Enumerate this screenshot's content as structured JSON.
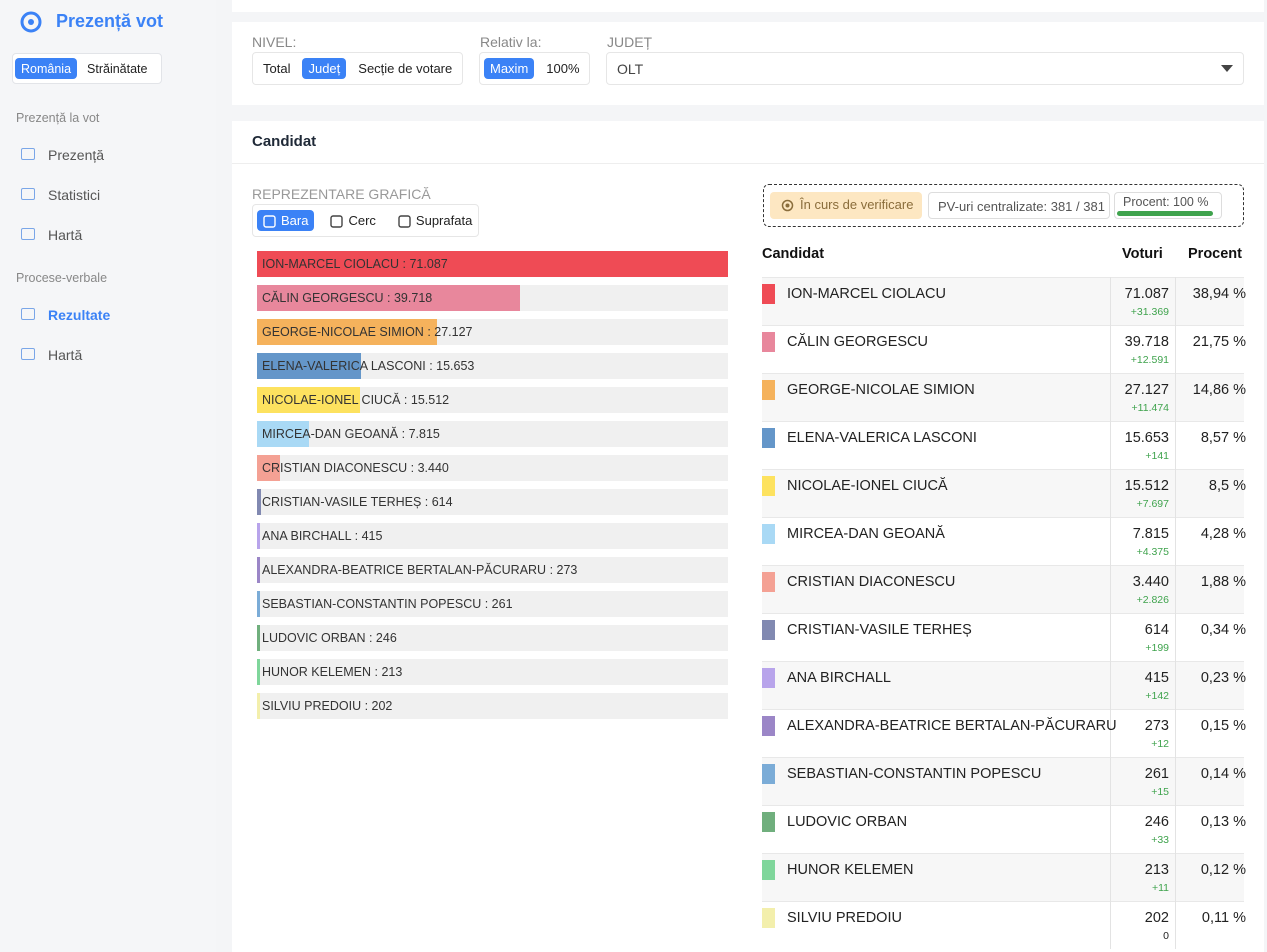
{
  "sidebar": {
    "brand": "Prezență vot",
    "scope_options": [
      "România",
      "Străinătate"
    ],
    "active_scope": 0,
    "sections": [
      {
        "title": "Prezență la vot",
        "items": [
          "Prezență",
          "Statistici",
          "Hartă"
        ]
      },
      {
        "title": "Procese-verbale",
        "items": [
          "Rezultate",
          "Hartă"
        ]
      }
    ],
    "active_item": [
      1,
      0
    ]
  },
  "filters": {
    "level_label": "NIVEL:",
    "level_options": [
      "Total",
      "Județ",
      "Secție de votare"
    ],
    "active_level": 1,
    "relative_label": "Relativ la:",
    "relative_options": [
      "Maxim",
      "100%"
    ],
    "active_relative": 0,
    "county_label": "JUDEȚ",
    "county_value": "OLT"
  },
  "panel": {
    "title": "Candidat",
    "chart_label": "REPREZENTARE GRAFICĂ",
    "chart_tabs": [
      "Bara",
      "Cerc",
      "Suprafata"
    ],
    "active_tab": 0,
    "separator": " : ",
    "status": "În curs de verificare",
    "centralized": "PV-uri centralizate: 381 / 381",
    "progress_text": "Procent: 100 %",
    "progress": 100,
    "progress_color": "#3fa34d",
    "table_headers": [
      "Candidat",
      "Voturi",
      "Procent"
    ]
  },
  "candidates": [
    {
      "name": "ION-MARCEL CIOLACU",
      "votes": 71087,
      "votes_label": "71.087",
      "delta": "+31.369",
      "percent": "38,94 %",
      "color": "#ef4b55"
    },
    {
      "name": "CĂLIN GEORGESCU",
      "votes": 39718,
      "votes_label": "39.718",
      "delta": "+12.591",
      "percent": "21,75 %",
      "color": "#e8879c"
    },
    {
      "name": "GEORGE-NICOLAE SIMION",
      "votes": 27127,
      "votes_label": "27.127",
      "delta": "+11.474",
      "percent": "14,86 %",
      "color": "#f5b25c"
    },
    {
      "name": "ELENA-VALERICA LASCONI",
      "votes": 15653,
      "votes_label": "15.653",
      "delta": "+141",
      "percent": "8,57 %",
      "color": "#6496c9"
    },
    {
      "name": "NICOLAE-IONEL CIUCĂ",
      "votes": 15512,
      "votes_label": "15.512",
      "delta": "+7.697",
      "percent": "8,5 %",
      "color": "#fde25f"
    },
    {
      "name": "MIRCEA-DAN GEOANĂ",
      "votes": 7815,
      "votes_label": "7.815",
      "delta": "+4.375",
      "percent": "4,28 %",
      "color": "#a9d9f5"
    },
    {
      "name": "CRISTIAN DIACONESCU",
      "votes": 3440,
      "votes_label": "3.440",
      "delta": "+2.826",
      "percent": "1,88 %",
      "color": "#f4a194"
    },
    {
      "name": "CRISTIAN-VASILE TERHEȘ",
      "votes": 614,
      "votes_label": "614",
      "delta": "+199",
      "percent": "0,34 %",
      "color": "#8189b1"
    },
    {
      "name": "ANA BIRCHALL",
      "votes": 415,
      "votes_label": "415",
      "delta": "+142",
      "percent": "0,23 %",
      "color": "#b8a4eb"
    },
    {
      "name": "ALEXANDRA-BEATRICE BERTALAN-PĂCURARU",
      "votes": 273,
      "votes_label": "273",
      "delta": "+12",
      "percent": "0,15 %",
      "color": "#9b86c7"
    },
    {
      "name": "SEBASTIAN-CONSTANTIN POPESCU",
      "votes": 261,
      "votes_label": "261",
      "delta": "+15",
      "percent": "0,14 %",
      "color": "#7bacd7"
    },
    {
      "name": "LUDOVIC ORBAN",
      "votes": 246,
      "votes_label": "246",
      "delta": "+33",
      "percent": "0,13 %",
      "color": "#70af7d"
    },
    {
      "name": "HUNOR KELEMEN",
      "votes": 213,
      "votes_label": "213",
      "delta": "+11",
      "percent": "0,12 %",
      "color": "#7fd69b"
    },
    {
      "name": "SILVIU PREDOIU",
      "votes": 202,
      "votes_label": "202",
      "delta": "0",
      "percent": "0,11 %",
      "color": "#f3efac"
    }
  ]
}
